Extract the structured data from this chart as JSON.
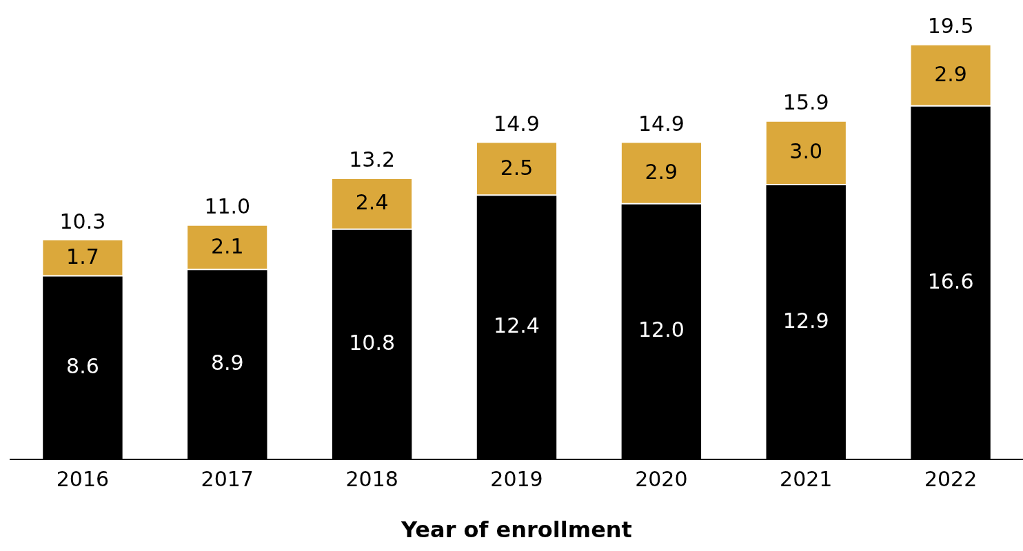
{
  "chart_data": {
    "type": "bar",
    "xlabel": "Year of enrollment",
    "categories": [
      "2016",
      "2017",
      "2018",
      "2019",
      "2020",
      "2021",
      "2022"
    ],
    "stacked": true,
    "grid": false,
    "legend": false,
    "series": [
      {
        "color": "#000000",
        "values": [
          8.6,
          8.9,
          10.8,
          12.4,
          12.0,
          12.9,
          16.6
        ],
        "value_labels": [
          "8.6",
          "8.9",
          "10.8",
          "12.4",
          "12.0",
          "12.9",
          "16.6"
        ]
      },
      {
        "color": "#dba83b",
        "values": [
          1.7,
          2.1,
          2.4,
          2.5,
          2.9,
          3.0,
          2.9
        ],
        "value_labels": [
          "1.7",
          "2.1",
          "2.4",
          "2.5",
          "2.9",
          "3.0",
          "2.9"
        ]
      }
    ],
    "totals": [
      "10.3",
      "11.0",
      "13.2",
      "14.9",
      "14.9",
      "15.9",
      "19.5"
    ]
  }
}
